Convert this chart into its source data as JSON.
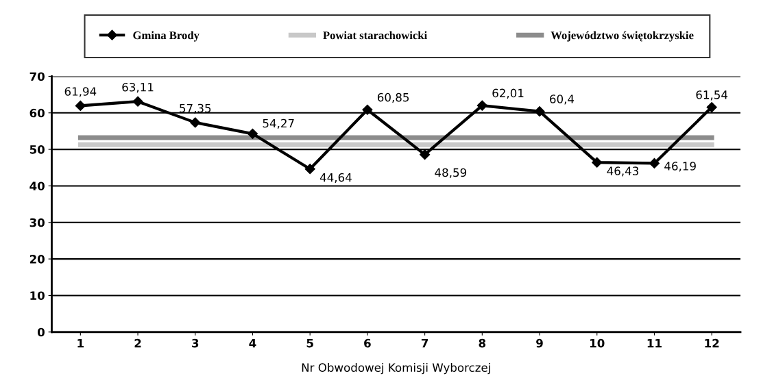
{
  "chart_data": {
    "type": "line",
    "xlabel": "Nr Obwodowej Komisji Wyborczej",
    "categories": [
      "1",
      "2",
      "3",
      "4",
      "5",
      "6",
      "7",
      "8",
      "9",
      "10",
      "11",
      "12"
    ],
    "series": [
      {
        "name": "Gmina Brody",
        "color": "#000000",
        "marker": "diamond",
        "values": [
          61.94,
          63.11,
          57.35,
          54.27,
          44.64,
          60.85,
          48.59,
          62.01,
          60.4,
          46.43,
          46.19,
          61.54
        ],
        "value_labels": [
          "61,94",
          "63,11",
          "57,35",
          "54,27",
          "44,64",
          "60,85",
          "48,59",
          "62,01",
          "60,4",
          "46,43",
          "46,19",
          "61,54"
        ]
      },
      {
        "name": "Powiat starachowicki",
        "color": "#c8c8c8",
        "marker": "none",
        "values": [
          51.3,
          51.3,
          51.3,
          51.3,
          51.3,
          51.3,
          51.3,
          51.3,
          51.3,
          51.3,
          51.3,
          51.3
        ]
      },
      {
        "name": "Województwo świętokrzyskie",
        "color": "#8c8c8c",
        "marker": "none",
        "values": [
          53.2,
          53.2,
          53.2,
          53.2,
          53.2,
          53.2,
          53.2,
          53.2,
          53.2,
          53.2,
          53.2,
          53.2
        ]
      }
    ],
    "ylim": [
      0,
      70
    ],
    "yticks": [
      0,
      10,
      20,
      30,
      40,
      50,
      60,
      70
    ],
    "grid": "y",
    "legend": "top"
  }
}
